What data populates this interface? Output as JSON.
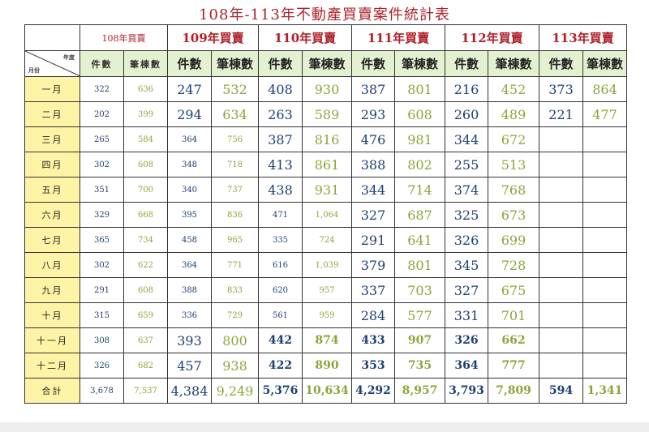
{
  "title": "108年-113年不動產買賣案件統計表",
  "corner": {
    "top": "年度",
    "bottom": "月份"
  },
  "years": [
    "108年買賣",
    "109年買賣",
    "110年買賣",
    "111年買賣",
    "112年買賣",
    "113年買賣"
  ],
  "sub_headers": {
    "count": "件數",
    "parcels": "筆棟數"
  },
  "rows": [
    {
      "month": "一月",
      "v": [
        "322",
        "636",
        "247",
        "532",
        "408",
        "930",
        "387",
        "801",
        "216",
        "452",
        "373",
        "864"
      ]
    },
    {
      "month": "二月",
      "v": [
        "202",
        "399",
        "294",
        "634",
        "263",
        "589",
        "293",
        "608",
        "260",
        "489",
        "221",
        "477"
      ]
    },
    {
      "month": "三月",
      "v": [
        "265",
        "584",
        "364",
        "756",
        "387",
        "816",
        "476",
        "981",
        "344",
        "672",
        "",
        ""
      ]
    },
    {
      "month": "四月",
      "v": [
        "302",
        "608",
        "348",
        "718",
        "413",
        "861",
        "388",
        "802",
        "255",
        "513",
        "",
        ""
      ]
    },
    {
      "month": "五月",
      "v": [
        "351",
        "700",
        "340",
        "737",
        "438",
        "931",
        "344",
        "714",
        "374",
        "768",
        "",
        ""
      ]
    },
    {
      "month": "六月",
      "v": [
        "329",
        "668",
        "395",
        "836",
        "471",
        "1,064",
        "327",
        "687",
        "325",
        "673",
        "",
        ""
      ]
    },
    {
      "month": "七月",
      "v": [
        "365",
        "734",
        "458",
        "965",
        "335",
        "724",
        "291",
        "641",
        "326",
        "699",
        "",
        ""
      ]
    },
    {
      "month": "八月",
      "v": [
        "302",
        "622",
        "364",
        "771",
        "616",
        "1,039",
        "379",
        "801",
        "345",
        "728",
        "",
        ""
      ]
    },
    {
      "month": "九月",
      "v": [
        "291",
        "608",
        "388",
        "833",
        "620",
        "957",
        "337",
        "703",
        "327",
        "675",
        "",
        ""
      ]
    },
    {
      "month": "十月",
      "v": [
        "315",
        "659",
        "336",
        "729",
        "561",
        "959",
        "284",
        "577",
        "331",
        "701",
        "",
        ""
      ]
    },
    {
      "month": "十一月",
      "v": [
        "308",
        "637",
        "393",
        "800",
        "442",
        "874",
        "433",
        "907",
        "326",
        "662",
        "",
        ""
      ]
    },
    {
      "month": "十二月",
      "v": [
        "326",
        "682",
        "457",
        "938",
        "422",
        "890",
        "353",
        "735",
        "364",
        "777",
        "",
        ""
      ]
    }
  ],
  "total": {
    "label": "合計",
    "v": [
      "3,678",
      "7,537",
      "4,384",
      "9,249",
      "5,376",
      "10,634",
      "4,292",
      "8,957",
      "3,793",
      "7,809",
      "594",
      "1,341"
    ]
  },
  "colors": {
    "title": "#b0202a",
    "count": "#1d3f74",
    "parcels": "#8ba53b",
    "month_bg": "#fff4a6",
    "subheader_bg": "#e4f1d0"
  }
}
